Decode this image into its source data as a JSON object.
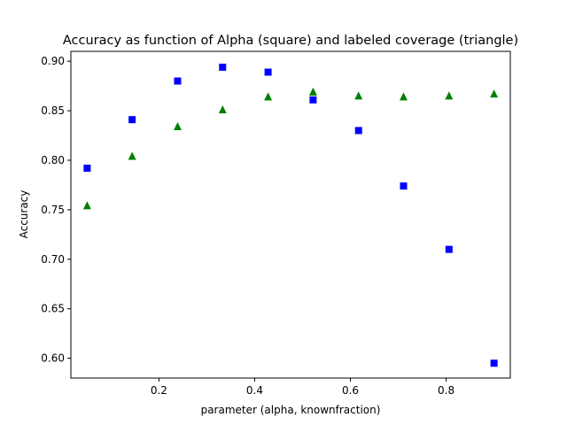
{
  "chart_data": {
    "type": "scatter",
    "title": "Accuracy as function of Alpha (square) and labeled coverage (triangle)",
    "xlabel": "parameter (alpha, knownfraction)",
    "ylabel": "Accuracy",
    "xlim": [
      0.016,
      0.934
    ],
    "ylim": [
      0.58,
      0.91
    ],
    "xticks": [
      0.2,
      0.4,
      0.6,
      0.8
    ],
    "xtick_labels": [
      "0.2",
      "0.4",
      "0.6",
      "0.8"
    ],
    "yticks": [
      0.6,
      0.65,
      0.7,
      0.75,
      0.8,
      0.85,
      0.9
    ],
    "ytick_labels": [
      "0.60",
      "0.65",
      "0.70",
      "0.75",
      "0.80",
      "0.85",
      "0.90"
    ],
    "grid": false,
    "legend": "none",
    "series": [
      {
        "marker": "square",
        "color": "#0000ff",
        "x": [
          0.05,
          0.144,
          0.239,
          0.333,
          0.428,
          0.522,
          0.617,
          0.711,
          0.806,
          0.9
        ],
        "y": [
          0.792,
          0.841,
          0.88,
          0.894,
          0.889,
          0.861,
          0.83,
          0.774,
          0.71,
          0.595
        ]
      },
      {
        "marker": "triangle",
        "color": "#008000",
        "x": [
          0.05,
          0.144,
          0.239,
          0.333,
          0.428,
          0.522,
          0.617,
          0.711,
          0.806,
          0.9
        ],
        "y": [
          0.754,
          0.804,
          0.834,
          0.851,
          0.864,
          0.869,
          0.865,
          0.864,
          0.865,
          0.867
        ]
      }
    ]
  }
}
